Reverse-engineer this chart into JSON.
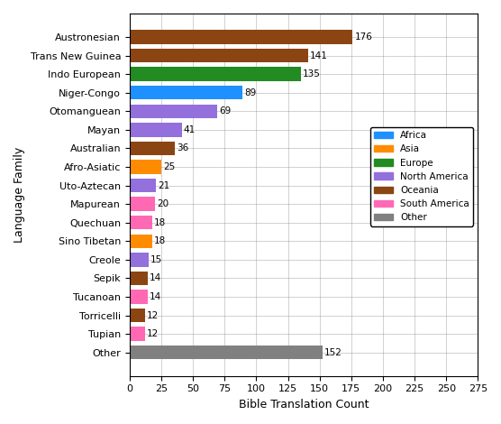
{
  "categories": [
    "Other",
    "Tupian",
    "Torricelli",
    "Tucanoan",
    "Sepik",
    "Creole",
    "Sino Tibetan",
    "Quechuan",
    "Mapurean",
    "Uto-Aztecan",
    "Afro-Asiatic",
    "Australian",
    "Mayan",
    "Otomanguean",
    "Niger-Congo",
    "Indo European",
    "Trans New Guinea",
    "Austronesian"
  ],
  "values": [
    152,
    12,
    12,
    14,
    14,
    15,
    18,
    18,
    20,
    21,
    25,
    36,
    41,
    69,
    89,
    135,
    141,
    176
  ],
  "colors": [
    "#808080",
    "#ff69b4",
    "#8B4513",
    "#ff69b4",
    "#8B4513",
    "#9370DB",
    "#FF8C00",
    "#ff69b4",
    "#ff69b4",
    "#9370DB",
    "#FF8C00",
    "#8B4513",
    "#9370DB",
    "#9370DB",
    "#1e90ff",
    "#228B22",
    "#8B4513",
    "#8B4513"
  ],
  "xlabel": "Bible Translation Count",
  "ylabel": "Language Family",
  "xlim": [
    0,
    275
  ],
  "xticks": [
    0,
    25,
    50,
    75,
    100,
    125,
    150,
    175,
    200,
    225,
    250,
    275
  ],
  "legend_entries": [
    {
      "label": "Africa",
      "color": "#1e90ff"
    },
    {
      "label": "Asia",
      "color": "#FF8C00"
    },
    {
      "label": "Europe",
      "color": "#228B22"
    },
    {
      "label": "North America",
      "color": "#9370DB"
    },
    {
      "label": "Oceania",
      "color": "#8B4513"
    },
    {
      "label": "South America",
      "color": "#ff69b4"
    },
    {
      "label": "Other",
      "color": "#808080"
    }
  ],
  "bar_labels": [
    152,
    12,
    12,
    14,
    14,
    15,
    18,
    18,
    20,
    21,
    25,
    36,
    41,
    69,
    89,
    135,
    141,
    176
  ],
  "figsize": [
    5.56,
    4.7
  ],
  "dpi": 100
}
